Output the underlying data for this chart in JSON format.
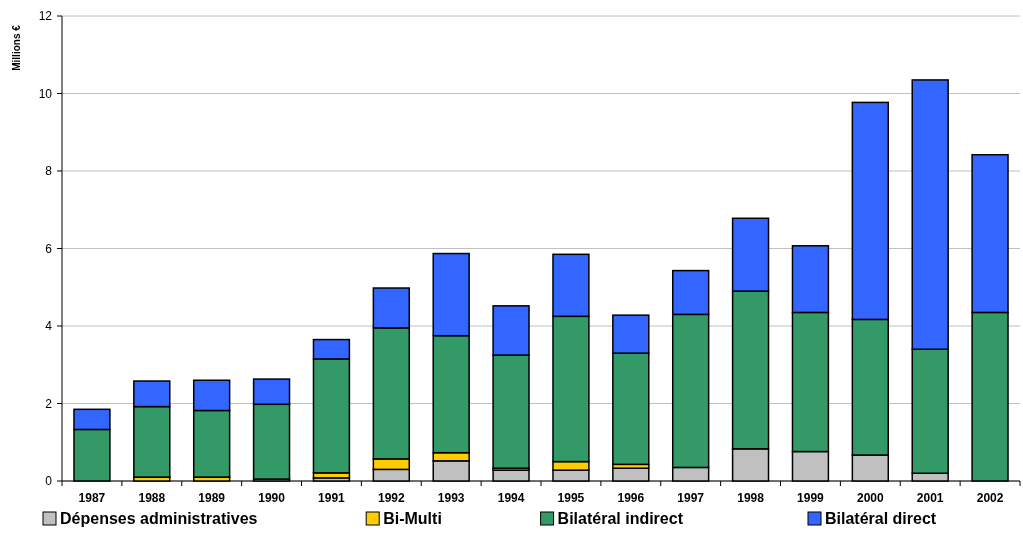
{
  "chart_data": {
    "type": "bar",
    "stacked": true,
    "ylabel": "Millions €",
    "categories": [
      "1987",
      "1988",
      "1989",
      "1990",
      "1991",
      "1992",
      "1993",
      "1994",
      "1995",
      "1996",
      "1997",
      "1998",
      "1999",
      "2000",
      "2001",
      "2002"
    ],
    "series": [
      {
        "name": "Dépenses administratives",
        "color": "#c0c0c0",
        "values": [
          0,
          null,
          null,
          0.05,
          0.08,
          0.3,
          0.52,
          0.28,
          0.28,
          0.33,
          0.35,
          0.83,
          0.76,
          0.67,
          0.2,
          null
        ]
      },
      {
        "name": "Bi-Multi",
        "color": "#ffcc00",
        "values": [
          0,
          0.1,
          0.1,
          0,
          0.13,
          0.27,
          0.21,
          0.05,
          0.22,
          0.1,
          null,
          0,
          0,
          0,
          0,
          0
        ]
      },
      {
        "name": "Bilatéral indirect",
        "color": "#339966",
        "values": [
          1.33,
          1.82,
          1.72,
          1.93,
          2.94,
          3.38,
          3.02,
          2.92,
          3.75,
          2.87,
          3.95,
          4.07,
          3.59,
          3.5,
          3.2,
          4.35
        ]
      },
      {
        "name": "Bilatéral direct",
        "color": "#3366ff",
        "values": [
          0.52,
          0.66,
          0.78,
          0.65,
          0.5,
          1.03,
          2.12,
          1.27,
          1.6,
          0.98,
          1.13,
          1.88,
          1.72,
          5.6,
          6.95,
          4.07
        ]
      }
    ],
    "ylim": [
      0,
      12
    ],
    "yticks": [
      0,
      2,
      4,
      6,
      8,
      10,
      12
    ],
    "grid": "y",
    "legend": "bottom"
  }
}
